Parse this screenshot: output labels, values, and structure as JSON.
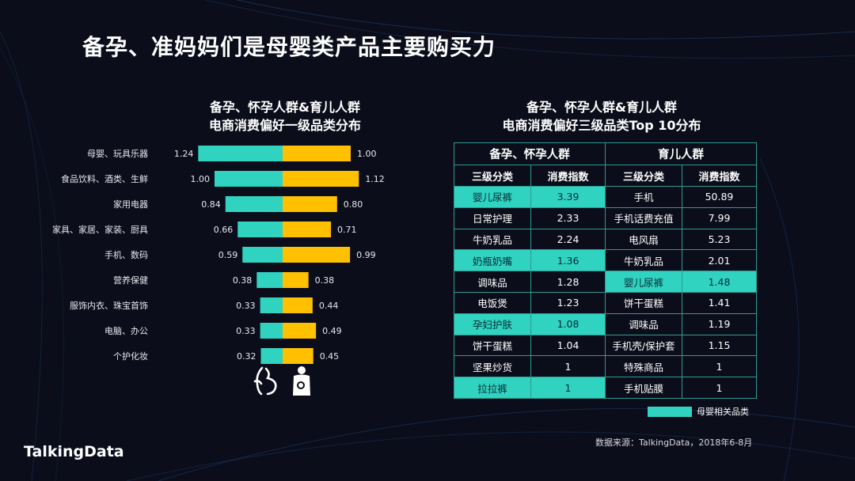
{
  "page_title": "备孕、准妈妈们是母婴类产品主要购买力",
  "left_subtitle": [
    "备孕、怀孕人群&育儿人群",
    "电商消费偏好一级品类分布"
  ],
  "right_subtitle": [
    "备孕、怀孕人群&育儿人群",
    "电商消费偏好三级品类Top  10分布"
  ],
  "colors": {
    "pregnant": "#2fd3c0",
    "parenting": "#ffc000",
    "background": "#0b0d1a"
  },
  "icons": [
    "pregnant-silhouette-icon",
    "mother-baby-icon"
  ],
  "chart_data": {
    "type": "bar",
    "orientation": "diverging-horizontal",
    "categories": [
      "母婴、玩具乐器",
      "食品饮料、酒类、生鲜",
      "家用电器",
      "家具、家居、家装、厨具",
      "手机、数码",
      "营养保健",
      "服饰内衣、珠宝首饰",
      "电脑、办公",
      "个护化妆"
    ],
    "series": [
      {
        "values": [
          1.24,
          1.0,
          0.84,
          0.66,
          0.59,
          0.38,
          0.33,
          0.33,
          0.32
        ],
        "color": "#2fd3c0"
      },
      {
        "values": [
          1.0,
          1.12,
          0.8,
          0.71,
          0.99,
          0.38,
          0.44,
          0.49,
          0.45
        ],
        "color": "#ffc000"
      }
    ],
    "value_labels": [
      [
        "1.24",
        "1.00",
        "0.84",
        "0.66",
        "0.59",
        "0.38",
        "0.33",
        "0.33",
        "0.32"
      ],
      [
        "1.00",
        "1.12",
        "0.80",
        "0.71",
        "0.99",
        "0.38",
        "0.44",
        "0.49",
        "0.45"
      ]
    ],
    "title": "",
    "xlabel": "",
    "ylabel": ""
  },
  "table": {
    "groups": [
      "备孕、怀孕人群",
      "育儿人群"
    ],
    "headers": [
      "三级分类",
      "消费指数",
      "三级分类",
      "消费指数"
    ],
    "rows": [
      {
        "c1": "婴儿尿裤",
        "v1": "3.39",
        "h1": true,
        "c2": "手机",
        "v2": "50.89",
        "h2": false
      },
      {
        "c1": "日常护理",
        "v1": "2.33",
        "h1": false,
        "c2": "手机话费充值",
        "v2": "7.99",
        "h2": false
      },
      {
        "c1": "牛奶乳品",
        "v1": "2.24",
        "h1": false,
        "c2": "电风扇",
        "v2": "5.23",
        "h2": false
      },
      {
        "c1": "奶瓶奶嘴",
        "v1": "1.36",
        "h1": true,
        "c2": "牛奶乳品",
        "v2": "2.01",
        "h2": false
      },
      {
        "c1": "调味品",
        "v1": "1.28",
        "h1": false,
        "c2": "婴儿尿裤",
        "v2": "1.48",
        "h2": true
      },
      {
        "c1": "电饭煲",
        "v1": "1.23",
        "h1": false,
        "c2": "饼干蛋糕",
        "v2": "1.41",
        "h2": false
      },
      {
        "c1": "孕妇护肤",
        "v1": "1.08",
        "h1": true,
        "c2": "调味品",
        "v2": "1.19",
        "h2": false
      },
      {
        "c1": "饼干蛋糕",
        "v1": "1.04",
        "h1": false,
        "c2": "手机壳/保护套",
        "v2": "1.15",
        "h2": false
      },
      {
        "c1": "坚果炒货",
        "v1": "1",
        "h1": false,
        "c2": "特殊商品",
        "v2": "1",
        "h2": false
      },
      {
        "c1": "拉拉裤",
        "v1": "1",
        "h1": true,
        "c2": "手机贴膜",
        "v2": "1",
        "h2": false
      }
    ]
  },
  "legend_label": "母婴相关品类",
  "source": "数据来源：TalkingData，2018年6-8月",
  "logo": "TalkingData"
}
